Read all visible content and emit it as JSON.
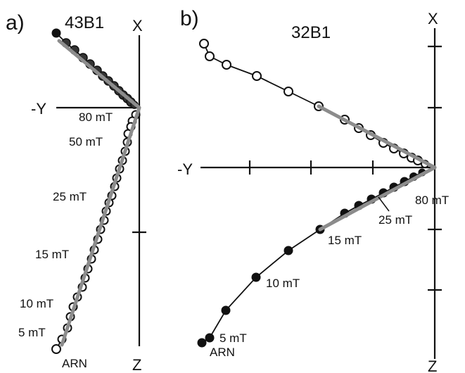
{
  "colors": {
    "axes": "#111111",
    "fit_line": "#8c8c8c",
    "open_marker_fill": "#ffffff",
    "closed_marker_fill": "#111111"
  },
  "panels": {
    "a": {
      "label": "a)",
      "specimen": "43B1",
      "axis_top": "X",
      "axis_left": "-Y",
      "axis_bottom": "Z",
      "step_labels": [
        "80 mT",
        "50 mT",
        "25 mT",
        "15 mT",
        "10 mT",
        "5 mT",
        "ARN"
      ]
    },
    "b": {
      "label": "b)",
      "specimen": "32B1",
      "axis_top": "X",
      "axis_left": "-Y",
      "axis_bottom": "Z",
      "step_labels": [
        "80 mT",
        "25 mT",
        "15 mT",
        "10 mT",
        "5 mT",
        "ARN"
      ]
    }
  }
}
